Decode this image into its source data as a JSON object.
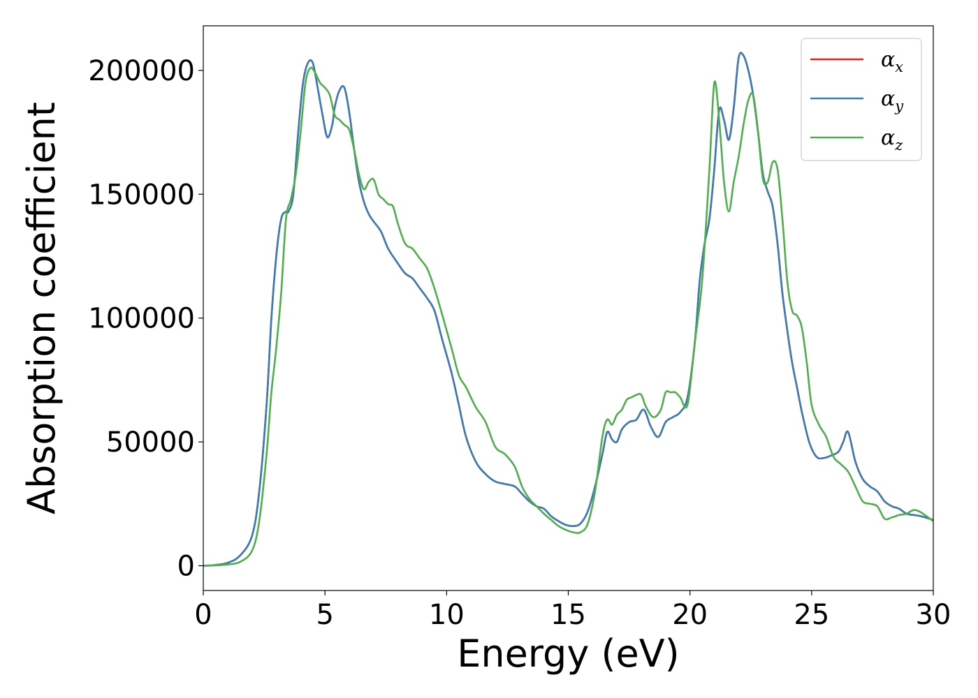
{
  "chart_data": {
    "type": "line",
    "title": "",
    "xlabel": "Energy (eV)",
    "ylabel": "Absorption coefficient",
    "xlim": [
      0,
      30
    ],
    "ylim": [
      -10000,
      218000
    ],
    "xticks": [
      0,
      5,
      10,
      15,
      20,
      25,
      30
    ],
    "xtick_labels": [
      "0",
      "5",
      "10",
      "15",
      "20",
      "25",
      "30"
    ],
    "yticks": [
      0,
      50000,
      100000,
      150000,
      200000
    ],
    "ytick_labels": [
      "0",
      "50000",
      "100000",
      "150000",
      "200000"
    ],
    "grid": false,
    "legend_position": "top-right",
    "series": [
      {
        "name": "α",
        "subscript": "x",
        "color": "#e41a1c",
        "x": [
          0,
          0.5,
          1.0,
          1.5,
          2.0,
          2.3,
          2.6,
          2.8,
          3.0,
          3.2,
          3.4,
          3.5,
          3.7,
          3.9,
          4.1,
          4.3,
          4.5,
          4.7,
          4.9,
          5.1,
          5.3,
          5.4,
          5.6,
          5.8,
          6.0,
          6.2,
          6.4,
          6.6,
          6.8,
          7.0,
          7.3,
          7.6,
          8.0,
          8.3,
          8.6,
          8.9,
          9.2,
          9.5,
          9.8,
          10.2,
          10.5,
          10.8,
          11.2,
          11.6,
          12.0,
          12.4,
          12.8,
          13.1,
          13.4,
          13.7,
          14.0,
          14.3,
          14.6,
          14.9,
          15.2,
          15.5,
          15.8,
          16.1,
          16.4,
          16.6,
          16.8,
          17.0,
          17.2,
          17.5,
          17.8,
          18.1,
          18.4,
          18.7,
          19.0,
          19.3,
          19.6,
          19.9,
          20.2,
          20.4,
          20.6,
          20.8,
          21.0,
          21.2,
          21.4,
          21.6,
          21.8,
          22.0,
          22.2,
          22.4,
          22.6,
          22.8,
          23.0,
          23.2,
          23.4,
          23.6,
          23.8,
          24.0,
          24.2,
          24.4,
          24.6,
          24.9,
          25.2,
          25.5,
          25.8,
          26.1,
          26.3,
          26.5,
          26.8,
          27.1,
          27.4,
          27.7,
          28.0,
          28.3,
          28.6,
          28.9,
          29.2,
          29.5,
          30.0
        ],
        "y": [
          0,
          300,
          1200,
          4000,
          12000,
          30000,
          65000,
          100000,
          125000,
          140000,
          143000,
          143000,
          150000,
          175000,
          195000,
          203000,
          203000,
          193000,
          182000,
          173000,
          178000,
          185000,
          192000,
          193000,
          183000,
          168000,
          155000,
          147000,
          142000,
          139000,
          135000,
          128000,
          122000,
          118000,
          116000,
          112000,
          108000,
          103000,
          92000,
          78000,
          65000,
          52000,
          42000,
          37000,
          34000,
          33000,
          32000,
          29000,
          26000,
          24000,
          23000,
          20000,
          18000,
          16500,
          16000,
          17000,
          22000,
          32000,
          45000,
          54000,
          51000,
          50000,
          55000,
          58000,
          59000,
          63000,
          56000,
          52000,
          58000,
          60000,
          62000,
          68000,
          90000,
          115000,
          130000,
          140000,
          160000,
          184000,
          180000,
          172000,
          185000,
          205000,
          206000,
          200000,
          190000,
          175000,
          158000,
          151000,
          145000,
          130000,
          110000,
          95000,
          82000,
          72000,
          62000,
          50000,
          44000,
          43500,
          44500,
          46000,
          50000,
          54000,
          42000,
          35000,
          32000,
          30000,
          26000,
          24000,
          23000,
          21000,
          20500,
          20000,
          18500
        ]
      },
      {
        "name": "α",
        "subscript": "y",
        "color": "#377eb8",
        "x": [
          0,
          0.5,
          1.0,
          1.5,
          2.0,
          2.3,
          2.6,
          2.8,
          3.0,
          3.2,
          3.4,
          3.5,
          3.7,
          3.9,
          4.1,
          4.3,
          4.5,
          4.7,
          4.9,
          5.1,
          5.3,
          5.4,
          5.6,
          5.8,
          6.0,
          6.2,
          6.4,
          6.6,
          6.8,
          7.0,
          7.3,
          7.6,
          8.0,
          8.3,
          8.6,
          8.9,
          9.2,
          9.5,
          9.8,
          10.2,
          10.5,
          10.8,
          11.2,
          11.6,
          12.0,
          12.4,
          12.8,
          13.1,
          13.4,
          13.7,
          14.0,
          14.3,
          14.6,
          14.9,
          15.2,
          15.5,
          15.8,
          16.1,
          16.4,
          16.6,
          16.8,
          17.0,
          17.2,
          17.5,
          17.8,
          18.1,
          18.4,
          18.7,
          19.0,
          19.3,
          19.6,
          19.9,
          20.2,
          20.4,
          20.6,
          20.8,
          21.0,
          21.2,
          21.4,
          21.6,
          21.8,
          22.0,
          22.2,
          22.4,
          22.6,
          22.8,
          23.0,
          23.2,
          23.4,
          23.6,
          23.8,
          24.0,
          24.2,
          24.4,
          24.6,
          24.9,
          25.2,
          25.5,
          25.8,
          26.1,
          26.3,
          26.5,
          26.8,
          27.1,
          27.4,
          27.7,
          28.0,
          28.3,
          28.6,
          28.9,
          29.2,
          29.5,
          30.0
        ],
        "y": [
          0,
          300,
          1200,
          4000,
          12000,
          30000,
          65000,
          100000,
          125000,
          140000,
          143000,
          143000,
          150000,
          175000,
          195000,
          203000,
          203000,
          193000,
          182000,
          173000,
          178000,
          185000,
          192000,
          193000,
          183000,
          168000,
          155000,
          147000,
          142000,
          139000,
          135000,
          128000,
          122000,
          118000,
          116000,
          112000,
          108000,
          103000,
          92000,
          78000,
          65000,
          52000,
          42000,
          37000,
          34000,
          33000,
          32000,
          29000,
          26000,
          24000,
          23000,
          20000,
          18000,
          16500,
          16000,
          17000,
          22000,
          32000,
          45000,
          54000,
          51000,
          50000,
          55000,
          58000,
          59000,
          63000,
          56000,
          52000,
          58000,
          60000,
          62000,
          68000,
          90000,
          115000,
          130000,
          140000,
          160000,
          184000,
          180000,
          172000,
          185000,
          205000,
          206000,
          200000,
          190000,
          175000,
          158000,
          151000,
          145000,
          130000,
          110000,
          95000,
          82000,
          72000,
          62000,
          50000,
          44000,
          43500,
          44500,
          46000,
          50000,
          54000,
          42000,
          35000,
          32000,
          30000,
          26000,
          24000,
          23000,
          21000,
          20500,
          20000,
          18500
        ]
      },
      {
        "name": "α",
        "subscript": "z",
        "color": "#4daf4a",
        "x": [
          0,
          0.5,
          1.0,
          1.5,
          2.0,
          2.3,
          2.6,
          2.8,
          3.0,
          3.2,
          3.4,
          3.6,
          3.8,
          4.0,
          4.2,
          4.4,
          4.6,
          4.8,
          5.0,
          5.2,
          5.4,
          5.6,
          5.8,
          6.0,
          6.2,
          6.4,
          6.6,
          6.8,
          7.0,
          7.2,
          7.4,
          7.6,
          7.8,
          8.0,
          8.3,
          8.6,
          8.9,
          9.2,
          9.5,
          9.8,
          10.2,
          10.5,
          10.8,
          11.2,
          11.6,
          12.0,
          12.4,
          12.8,
          13.1,
          13.4,
          13.7,
          14.0,
          14.3,
          14.6,
          14.9,
          15.2,
          15.5,
          15.8,
          16.1,
          16.4,
          16.6,
          16.8,
          17.0,
          17.2,
          17.4,
          17.6,
          17.8,
          18.0,
          18.2,
          18.5,
          18.8,
          19.0,
          19.2,
          19.4,
          19.6,
          19.9,
          20.2,
          20.5,
          20.8,
          21.0,
          21.2,
          21.4,
          21.6,
          21.8,
          22.0,
          22.2,
          22.4,
          22.6,
          22.8,
          23.0,
          23.2,
          23.4,
          23.6,
          23.8,
          24.0,
          24.2,
          24.4,
          24.6,
          24.8,
          25.0,
          25.3,
          25.6,
          25.9,
          26.2,
          26.5,
          26.8,
          27.1,
          27.4,
          27.7,
          28.0,
          28.3,
          28.6,
          28.9,
          29.2,
          29.5,
          30.0
        ],
        "y": [
          0,
          150,
          500,
          1500,
          6000,
          18000,
          45000,
          70000,
          88000,
          110000,
          140000,
          148000,
          158000,
          175000,
          195000,
          201000,
          199000,
          195000,
          193000,
          190000,
          182000,
          180000,
          178000,
          176000,
          168000,
          158000,
          152000,
          155000,
          156000,
          150000,
          148000,
          146000,
          145000,
          138000,
          130000,
          128000,
          124000,
          120000,
          112000,
          102000,
          88000,
          77000,
          72000,
          64000,
          58000,
          48000,
          45000,
          40000,
          32000,
          27000,
          24000,
          21000,
          18500,
          16000,
          14500,
          13500,
          13500,
          17000,
          30000,
          52000,
          59000,
          57000,
          61000,
          63000,
          67000,
          68000,
          69000,
          69000,
          64000,
          60000,
          63000,
          70000,
          70000,
          70000,
          68000,
          65000,
          90000,
          115000,
          160000,
          195000,
          180000,
          155000,
          143000,
          155000,
          165000,
          178000,
          188000,
          190000,
          175000,
          156000,
          155000,
          163000,
          160000,
          140000,
          115000,
          103000,
          101000,
          96000,
          82000,
          65000,
          57000,
          52000,
          44000,
          41000,
          38000,
          32000,
          26000,
          25000,
          24000,
          19000,
          19500,
          20500,
          21000,
          22500,
          21500,
          18000
        ]
      }
    ]
  }
}
